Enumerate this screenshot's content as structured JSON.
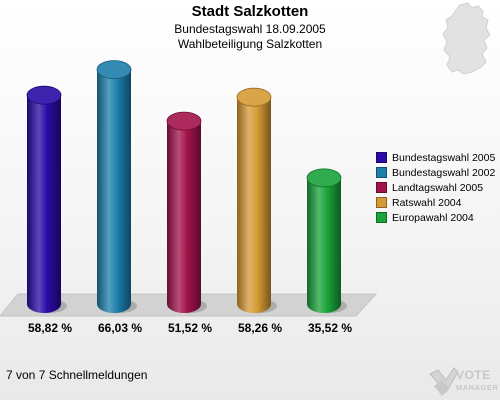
{
  "header": {
    "title": "Stadt Salzkotten",
    "subtitle1": "Bundestagswahl 18.09.2005",
    "subtitle2": "Wahlbeteiligung Salzkotten"
  },
  "footer": {
    "text": "7 von 7 Schnellmeldungen"
  },
  "branding": {
    "logo_line1": "VOTE",
    "logo_line2": "MANAGER"
  },
  "chart_data": {
    "type": "bar",
    "title": "Stadt Salzkotten",
    "subtitle": "Bundestagswahl 18.09.2005 / Wahlbeteiligung Salzkotten",
    "categories": [
      "Bundestagswahl 2005",
      "Bundestagswahl 2002",
      "Landtagswahl 2005",
      "Ratswahl 2004",
      "Europawahl 2004"
    ],
    "values": [
      58.82,
      66.03,
      51.52,
      58.26,
      35.52
    ],
    "value_labels": [
      "58,82 %",
      "66,03 %",
      "51,52 %",
      "58,26 %",
      "35,52 %"
    ],
    "colors": [
      "#2a0aa6",
      "#1c7eaa",
      "#a3124a",
      "#d69a34",
      "#19a33a"
    ],
    "legend_position": "right",
    "grid": false
  }
}
